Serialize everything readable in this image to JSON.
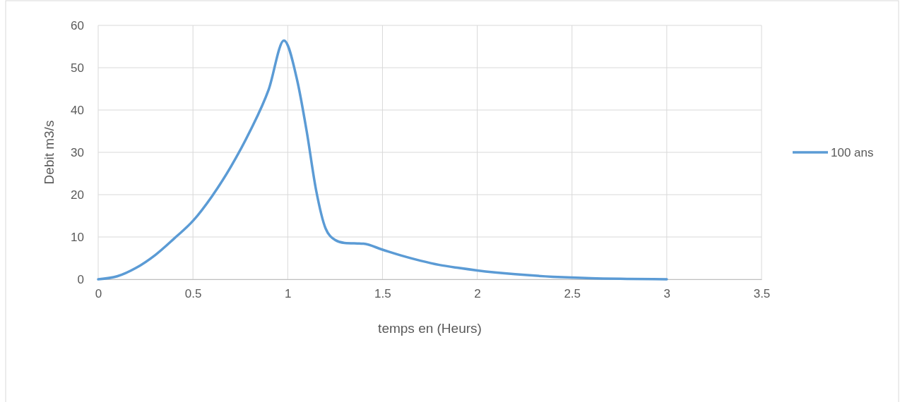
{
  "chart_data": {
    "type": "line",
    "xlabel": "temps en (Heurs)",
    "ylabel": "Debit m3/s",
    "xlim": [
      0,
      3.5
    ],
    "xticks": [
      0,
      0.5,
      1,
      1.5,
      2,
      2.5,
      3,
      3.5
    ],
    "ylim": [
      0,
      60
    ],
    "yticks": [
      0,
      10,
      20,
      30,
      40,
      50,
      60
    ],
    "grid": true,
    "legend": "right",
    "marker": "none",
    "line_style": "solid",
    "series": [
      {
        "name": "100 ans",
        "color": "#5b9bd5",
        "x": [
          0,
          0.1,
          0.2,
          0.3,
          0.4,
          0.5,
          0.6,
          0.7,
          0.8,
          0.9,
          0.98,
          1.05,
          1.1,
          1.15,
          1.2,
          1.25,
          1.3,
          1.4,
          1.5,
          1.6,
          1.7,
          1.8,
          1.9,
          2.0,
          2.2,
          2.4,
          2.5,
          2.6,
          2.8,
          3.0
        ],
        "values": [
          0,
          0.7,
          2.7,
          5.7,
          9.6,
          13.8,
          19.6,
          26.6,
          34.9,
          44.9,
          56.4,
          47,
          35,
          21,
          12,
          9.3,
          8.6,
          8.4,
          7,
          5.6,
          4.4,
          3.4,
          2.7,
          2.1,
          1.2,
          0.6,
          0.4,
          0.25,
          0.1,
          0
        ]
      }
    ]
  }
}
